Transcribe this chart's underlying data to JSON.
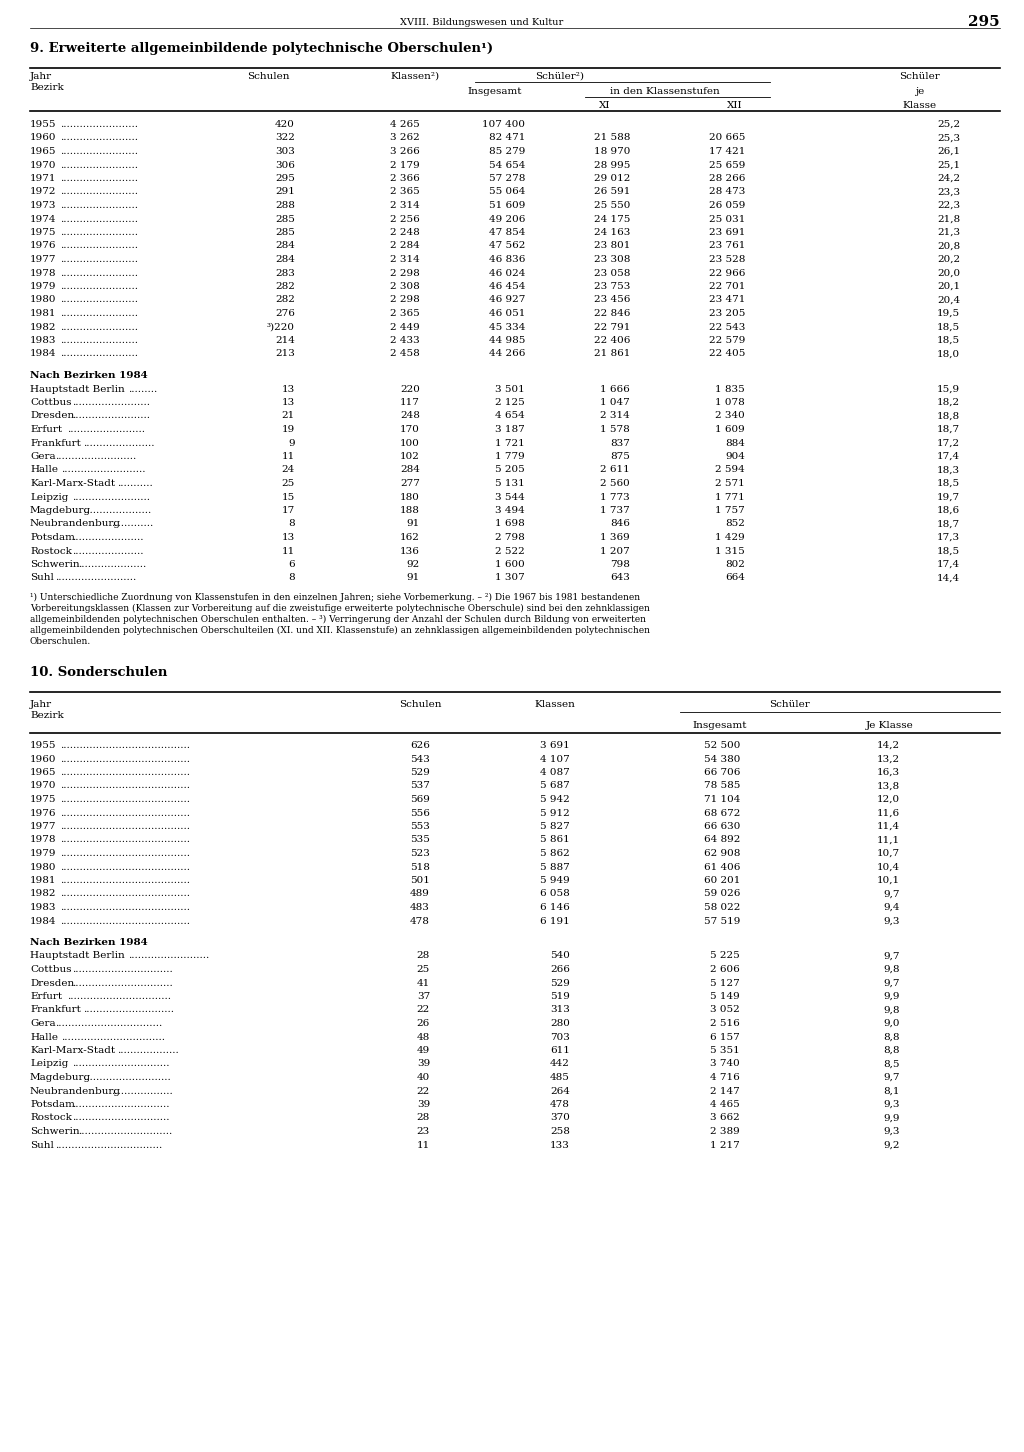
{
  "page_header": "XVIII. Bildungswesen und Kultur",
  "page_number": "295",
  "section9_title": "9. Erweiterte allgemeinbildende polytechnische Oberschulen¹)",
  "section9_years": [
    [
      "1955",
      "420",
      "4 265",
      "107 400",
      "",
      "",
      "25,2"
    ],
    [
      "1960",
      "322",
      "3 262",
      "82 471",
      "21 588",
      "20 665",
      "25,3"
    ],
    [
      "1965",
      "303",
      "3 266",
      "85 279",
      "18 970",
      "17 421",
      "26,1"
    ],
    [
      "1970",
      "306",
      "2 179",
      "54 654",
      "28 995",
      "25 659",
      "25,1"
    ],
    [
      "1971",
      "295",
      "2 366",
      "57 278",
      "29 012",
      "28 266",
      "24,2"
    ],
    [
      "1972",
      "291",
      "2 365",
      "55 064",
      "26 591",
      "28 473",
      "23,3"
    ],
    [
      "1973",
      "288",
      "2 314",
      "51 609",
      "25 550",
      "26 059",
      "22,3"
    ],
    [
      "1974",
      "285",
      "2 256",
      "49 206",
      "24 175",
      "25 031",
      "21,8"
    ],
    [
      "1975",
      "285",
      "2 248",
      "47 854",
      "24 163",
      "23 691",
      "21,3"
    ],
    [
      "1976",
      "284",
      "2 284",
      "47 562",
      "23 801",
      "23 761",
      "20,8"
    ],
    [
      "1977",
      "284",
      "2 314",
      "46 836",
      "23 308",
      "23 528",
      "20,2"
    ],
    [
      "1978",
      "283",
      "2 298",
      "46 024",
      "23 058",
      "22 966",
      "20,0"
    ],
    [
      "1979",
      "282",
      "2 308",
      "46 454",
      "23 753",
      "22 701",
      "20,1"
    ],
    [
      "1980",
      "282",
      "2 298",
      "46 927",
      "23 456",
      "23 471",
      "20,4"
    ],
    [
      "1981",
      "276",
      "2 365",
      "46 051",
      "22 846",
      "23 205",
      "19,5"
    ],
    [
      "1982",
      "³)220",
      "2 449",
      "45 334",
      "22 791",
      "22 543",
      "18,5"
    ],
    [
      "1983",
      "214",
      "2 433",
      "44 985",
      "22 406",
      "22 579",
      "18,5"
    ],
    [
      "1984",
      "213",
      "2 458",
      "44 266",
      "21 861",
      "22 405",
      "18,0"
    ]
  ],
  "section9_bezirk_header": "Nach Bezirken 1984",
  "section9_bezirke": [
    [
      "Hauptstadt Berlin",
      "13",
      "220",
      "3 501",
      "1 666",
      "1 835",
      "15,9"
    ],
    [
      "Cottbus",
      "13",
      "117",
      "2 125",
      "1 047",
      "1 078",
      "18,2"
    ],
    [
      "Dresden",
      "21",
      "248",
      "4 654",
      "2 314",
      "2 340",
      "18,8"
    ],
    [
      "Erfurt",
      "19",
      "170",
      "3 187",
      "1 578",
      "1 609",
      "18,7"
    ],
    [
      "Frankfurt",
      "9",
      "100",
      "1 721",
      "837",
      "884",
      "17,2"
    ],
    [
      "Gera",
      "11",
      "102",
      "1 779",
      "875",
      "904",
      "17,4"
    ],
    [
      "Halle",
      "24",
      "284",
      "5 205",
      "2 611",
      "2 594",
      "18,3"
    ],
    [
      "Karl-Marx-Stadt",
      "25",
      "277",
      "5 131",
      "2 560",
      "2 571",
      "18,5"
    ],
    [
      "Leipzig",
      "15",
      "180",
      "3 544",
      "1 773",
      "1 771",
      "19,7"
    ],
    [
      "Magdeburg",
      "17",
      "188",
      "3 494",
      "1 737",
      "1 757",
      "18,6"
    ],
    [
      "Neubrandenburg",
      "8",
      "91",
      "1 698",
      "846",
      "852",
      "18,7"
    ],
    [
      "Potsdam",
      "13",
      "162",
      "2 798",
      "1 369",
      "1 429",
      "17,3"
    ],
    [
      "Rostock",
      "11",
      "136",
      "2 522",
      "1 207",
      "1 315",
      "18,5"
    ],
    [
      "Schwerin",
      "6",
      "92",
      "1 600",
      "798",
      "802",
      "17,4"
    ],
    [
      "Suhl",
      "8",
      "91",
      "1 307",
      "643",
      "664",
      "14,4"
    ]
  ],
  "section9_footnotes": [
    "¹) Unterschiedliche Zuordnung von Klassenstufen in den einzelnen Jahren; siehe Vorbemerkung. – ²) Die 1967 bis 1981 bestandenen",
    "Vorbereitungsklassen (Klassen zur Vorbereitung auf die zweistufige erweiterte polytechnische Oberschule) sind bei den zehnklassigen",
    "allgemeinbildenden polytechnischen Oberschulen enthalten. – ³) Verringerung der Anzahl der Schulen durch Bildung von erweiterten",
    "allgemeinbildenden polytechnischen Oberschulteilen (XI. und XII. Klassenstufe) an zehnklassigen allgemeinbildenden polytechnischen",
    "Oberschulen."
  ],
  "section10_title": "10. Sonderschulen",
  "section10_years": [
    [
      "1955",
      "626",
      "3 691",
      "52 500",
      "14,2"
    ],
    [
      "1960",
      "543",
      "4 107",
      "54 380",
      "13,2"
    ],
    [
      "1965",
      "529",
      "4 087",
      "66 706",
      "16,3"
    ],
    [
      "1970",
      "537",
      "5 687",
      "78 585",
      "13,8"
    ],
    [
      "1975",
      "569",
      "5 942",
      "71 104",
      "12,0"
    ],
    [
      "1976",
      "556",
      "5 912",
      "68 672",
      "11,6"
    ],
    [
      "1977",
      "553",
      "5 827",
      "66 630",
      "11,4"
    ],
    [
      "1978",
      "535",
      "5 861",
      "64 892",
      "11,1"
    ],
    [
      "1979",
      "523",
      "5 862",
      "62 908",
      "10,7"
    ],
    [
      "1980",
      "518",
      "5 887",
      "61 406",
      "10,4"
    ],
    [
      "1981",
      "501",
      "5 949",
      "60 201",
      "10,1"
    ],
    [
      "1982",
      "489",
      "6 058",
      "59 026",
      "9,7"
    ],
    [
      "1983",
      "483",
      "6 146",
      "58 022",
      "9,4"
    ],
    [
      "1984",
      "478",
      "6 191",
      "57 519",
      "9,3"
    ]
  ],
  "section10_bezirk_header": "Nach Bezirken 1984",
  "section10_bezirke": [
    [
      "Hauptstadt Berlin",
      "28",
      "540",
      "5 225",
      "9,7"
    ],
    [
      "Cottbus",
      "25",
      "266",
      "2 606",
      "9,8"
    ],
    [
      "Dresden",
      "41",
      "529",
      "5 127",
      "9,7"
    ],
    [
      "Erfurt",
      "37",
      "519",
      "5 149",
      "9,9"
    ],
    [
      "Frankfurt",
      "22",
      "313",
      "3 052",
      "9,8"
    ],
    [
      "Gera",
      "26",
      "280",
      "2 516",
      "9,0"
    ],
    [
      "Halle",
      "48",
      "703",
      "6 157",
      "8,8"
    ],
    [
      "Karl-Marx-Stadt",
      "49",
      "611",
      "5 351",
      "8,8"
    ],
    [
      "Leipzig",
      "39",
      "442",
      "3 740",
      "8,5"
    ],
    [
      "Magdeburg",
      "40",
      "485",
      "4 716",
      "9,7"
    ],
    [
      "Neubrandenburg",
      "22",
      "264",
      "2 147",
      "8,1"
    ],
    [
      "Potsdam",
      "39",
      "478",
      "4 465",
      "9,3"
    ],
    [
      "Rostock",
      "28",
      "370",
      "3 662",
      "9,9"
    ],
    [
      "Schwerin",
      "23",
      "258",
      "2 389",
      "9,3"
    ],
    [
      "Suhl",
      "11",
      "133",
      "1 217",
      "9,2"
    ]
  ]
}
